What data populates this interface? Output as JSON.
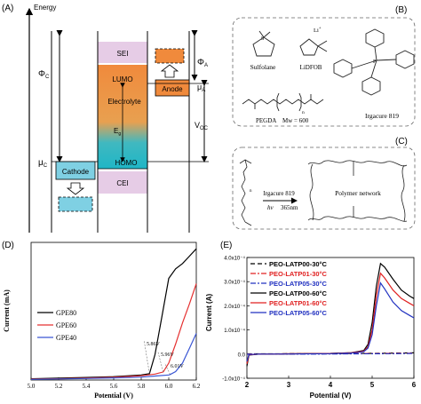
{
  "panel_labels": {
    "a": "(A)",
    "b": "(B)",
    "c": "(C)",
    "d": "(D)",
    "e": "(E)"
  },
  "panel_a": {
    "energy_label": "Energy",
    "phi_c": "Φ",
    "phi_c_sub": "C",
    "mu_c": "μ",
    "mu_c_sub": "C",
    "sei": "SEI",
    "lumo": "LUMO",
    "electrolyte": "Electrolyte",
    "eg": "E",
    "eg_sub": "g",
    "homo": "HOMO",
    "cei": "CEI",
    "cathode": "Cathode",
    "anode": "Anode",
    "phi_a": "Φ",
    "phi_a_sub": "A",
    "mu_a": "μ",
    "mu_a_sub": "A",
    "voc": "V",
    "voc_sub": "OC",
    "colors": {
      "sei": "#e6cce6",
      "cei": "#e6cce6",
      "electrolyte_top": "#f08a3c",
      "electrolyte_bottom": "#1fb6c6",
      "cathode": "#7fd0e3",
      "anode": "#f08a3c"
    }
  },
  "panel_b": {
    "sulfolane": "Sulfolane",
    "lidfob": "LiDFOB",
    "li_label": "Li",
    "li_charge": "+",
    "irgacure": "Irgacure 819",
    "pegda": "PEGDA",
    "mw": "Mw = 600",
    "repeat_n": "n"
  },
  "panel_c": {
    "irgacure": "Irgacure 819",
    "hv": "hv",
    "wavelength": "365nm",
    "network": "Polymer network"
  },
  "chart_data": [
    {
      "type": "line",
      "panel": "D",
      "xlabel": "Potential (V)",
      "ylabel": "Current (mA)",
      "xlim": [
        5.0,
        6.2
      ],
      "ylim": [
        0,
        0.65
      ],
      "x_ticks": [
        "5.0",
        "5.2",
        "5.4",
        "5.6",
        "5.8",
        "6.0",
        "6.2"
      ],
      "legend_position": "upper-left",
      "series": [
        {
          "name": "GPE80",
          "color": "#000000",
          "x": [
            5.0,
            5.2,
            5.4,
            5.6,
            5.8,
            5.86,
            5.9,
            5.95,
            6.0,
            6.05,
            6.1,
            6.15,
            6.2
          ],
          "y": [
            0.006,
            0.009,
            0.012,
            0.016,
            0.024,
            0.03,
            0.12,
            0.3,
            0.48,
            0.525,
            0.55,
            0.585,
            0.62
          ]
        },
        {
          "name": "GPE60",
          "color": "#e53030",
          "x": [
            5.0,
            5.2,
            5.4,
            5.6,
            5.8,
            5.9,
            5.96,
            6.0,
            6.05,
            6.1,
            6.15,
            6.2
          ],
          "y": [
            0.004,
            0.006,
            0.009,
            0.013,
            0.02,
            0.028,
            0.038,
            0.08,
            0.17,
            0.27,
            0.36,
            0.455
          ]
        },
        {
          "name": "GPE40",
          "color": "#3a56d4",
          "x": [
            5.0,
            5.2,
            5.4,
            5.6,
            5.8,
            5.9,
            6.0,
            6.01,
            6.05,
            6.1,
            6.15,
            6.2
          ],
          "y": [
            0.003,
            0.005,
            0.007,
            0.01,
            0.014,
            0.019,
            0.024,
            0.026,
            0.04,
            0.08,
            0.15,
            0.22
          ]
        }
      ],
      "annotations": [
        "5.86V",
        "5.96V",
        "6.01V"
      ]
    },
    {
      "type": "line",
      "panel": "E",
      "xlabel": "Potential (V)",
      "ylabel": "Current (A)",
      "xlim": [
        2,
        6
      ],
      "ylim": [
        -0.0001,
        0.0004
      ],
      "x_ticks": [
        "2",
        "3",
        "4",
        "5",
        "6"
      ],
      "y_ticks": [
        "-1.0x10⁻⁴",
        "0.0",
        "1.0x10⁻⁴",
        "2.0x10⁻⁴",
        "3.0x10⁻⁴",
        "4.0x10⁻⁴"
      ],
      "legend_position": "upper-left",
      "series": [
        {
          "name": "PEO-LATP00-30°C",
          "color": "#000000",
          "dash": "5,3",
          "x": [
            2,
            3,
            4,
            4.5,
            5,
            5.5,
            6
          ],
          "y": [
            1e-06,
            1.5e-06,
            2e-06,
            2.5e-06,
            3e-06,
            4e-06,
            5e-06
          ]
        },
        {
          "name": "PEO-LATP01-30°C",
          "color": "#e02020",
          "dash": "6,2,2,2",
          "x": [
            2,
            3,
            4,
            4.5,
            5,
            5.5,
            6
          ],
          "y": [
            5e-07,
            1e-06,
            1.5e-06,
            2e-06,
            2.5e-06,
            3e-06,
            4e-06
          ]
        },
        {
          "name": "PEO-LATP05-30°C",
          "color": "#2030c0",
          "dash": "6,2,2,2",
          "x": [
            2,
            3,
            4,
            4.5,
            5,
            5.5,
            6
          ],
          "y": [
            -5e-07,
            0,
            5e-07,
            1e-06,
            1.5e-06,
            2e-06,
            3e-06
          ]
        },
        {
          "name": "PEO-LATP00-60°C",
          "color": "#000000",
          "x": [
            2,
            2.05,
            2.3,
            3,
            4,
            4.5,
            4.8,
            4.9,
            5.0,
            5.1,
            5.2,
            5.3,
            5.5,
            5.7,
            5.9,
            6.0
          ],
          "y": [
            -5e-05,
            -4e-06,
            0,
            1e-06,
            3e-06,
            6e-06,
            1.5e-05,
            4e-05,
            0.00013,
            0.00028,
            0.000375,
            0.00036,
            0.00031,
            0.000265,
            0.00024,
            0.00023
          ]
        },
        {
          "name": "PEO-LATP01-60°C",
          "color": "#e02020",
          "x": [
            2,
            2.05,
            2.3,
            3,
            4,
            4.5,
            4.8,
            4.9,
            5.0,
            5.1,
            5.2,
            5.3,
            5.5,
            5.7,
            5.9,
            6.0
          ],
          "y": [
            -4e-05,
            -3e-06,
            0,
            1e-06,
            2.5e-06,
            5e-06,
            1.2e-05,
            3e-05,
            0.0001,
            0.00024,
            0.000335,
            0.000315,
            0.000265,
            0.00023,
            0.00021,
            0.0002
          ]
        },
        {
          "name": "PEO-LATP05-60°C",
          "color": "#2030c0",
          "x": [
            2,
            2.05,
            2.3,
            3,
            4,
            4.5,
            4.8,
            4.9,
            5.0,
            5.1,
            5.2,
            5.3,
            5.5,
            5.7,
            5.9,
            6.0
          ],
          "y": [
            -3e-05,
            -2e-06,
            0,
            5e-07,
            2e-06,
            4e-06,
            1e-05,
            2.5e-05,
            8e-05,
            0.0002,
            0.000295,
            0.00027,
            0.000215,
            0.00018,
            0.00016,
            0.00015
          ]
        }
      ]
    }
  ]
}
